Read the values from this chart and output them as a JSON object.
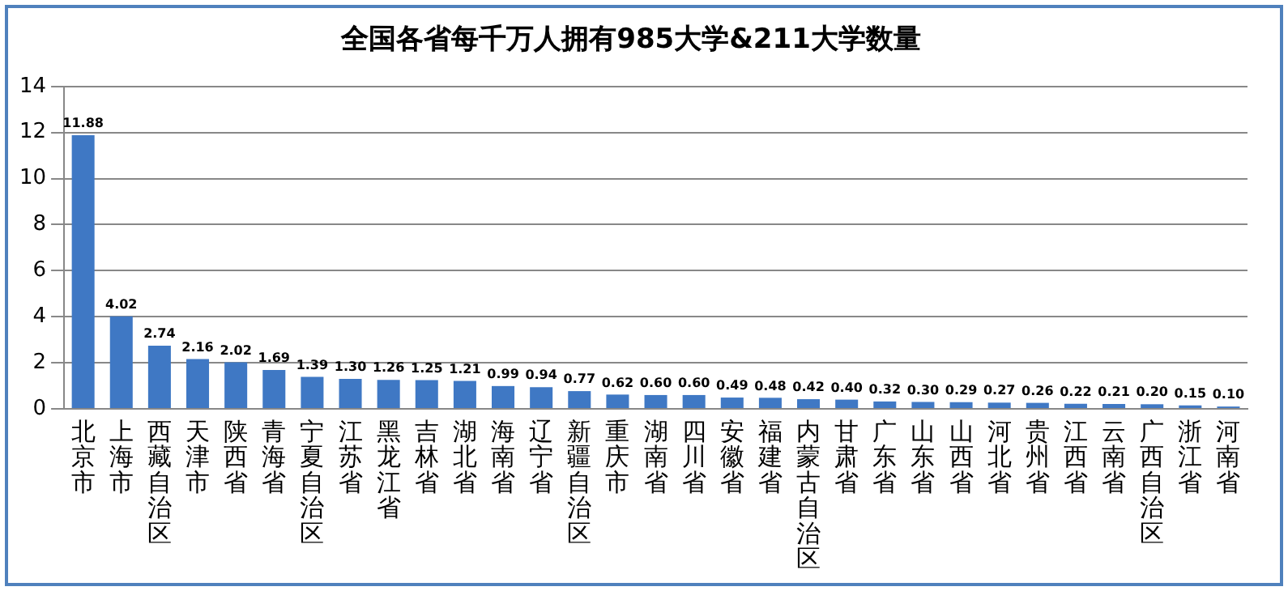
{
  "chart_data": {
    "type": "bar",
    "title": "全国各省每千万人拥有985大学&211大学数量",
    "categories": [
      "北京市",
      "上海市",
      "西藏自治区",
      "天津市",
      "陕西省",
      "青海省",
      "宁夏自治区",
      "江苏省",
      "黑龙江省",
      "吉林省",
      "湖北省",
      "海南省",
      "辽宁省",
      "新疆自治区",
      "重庆市",
      "湖南省",
      "四川省",
      "安徽省",
      "福建省",
      "内蒙古自治区",
      "甘肃省",
      "广东省",
      "山东省",
      "山西省",
      "河北省",
      "贵州省",
      "江西省",
      "云南省",
      "广西自治区",
      "浙江省",
      "河南省"
    ],
    "values": [
      11.88,
      4.02,
      2.74,
      2.16,
      2.02,
      1.69,
      1.39,
      1.3,
      1.26,
      1.25,
      1.21,
      0.99,
      0.94,
      0.77,
      0.62,
      0.6,
      0.6,
      0.49,
      0.48,
      0.42,
      0.4,
      0.32,
      0.3,
      0.29,
      0.27,
      0.26,
      0.22,
      0.21,
      0.2,
      0.15,
      0.1
    ],
    "color": "#3f78c4",
    "ylim": [
      0,
      14
    ],
    "yticks": [
      0,
      2,
      4,
      6,
      8,
      10,
      12,
      14
    ],
    "value_labels": [
      "11.88",
      "4.02",
      "2.74",
      "2.16",
      "2.02",
      "1.69",
      "1.39",
      "1.30",
      "1.26",
      "1.25",
      "1.21",
      "0.99",
      "0.94",
      "0.77",
      "0.62",
      "0.60",
      "0.60",
      "0.49",
      "0.48",
      "0.42",
      "0.40",
      "0.32",
      "0.30",
      "0.29",
      "0.27",
      "0.26",
      "0.22",
      "0.21",
      "0.20",
      "0.15",
      "0.10"
    ],
    "grid": "y",
    "legend": false
  }
}
